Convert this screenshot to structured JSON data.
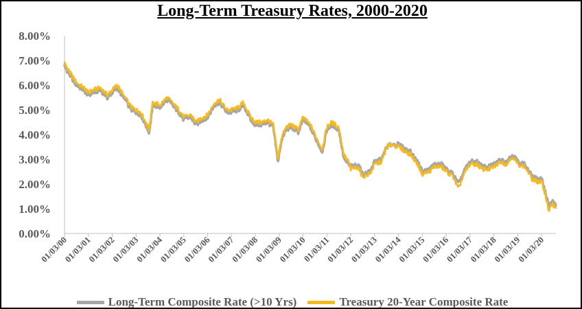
{
  "chart_data": {
    "type": "line",
    "title": "Long-Term Treasury Rates, 2000-2020",
    "xlabel": "",
    "ylabel": "",
    "y_tick_labels": [
      "0.00%",
      "1.00%",
      "2.00%",
      "3.00%",
      "4.00%",
      "5.00%",
      "6.00%",
      "7.00%",
      "8.00%"
    ],
    "ylim": [
      0,
      8
    ],
    "x_tick_labels": [
      "01/03/00",
      "01/03/01",
      "01/03/02",
      "01/03/03",
      "01/03/04",
      "01/03/05",
      "01/03/06",
      "01/03/07",
      "01/03/08",
      "01/03/09",
      "01/03/10",
      "01/03/11",
      "01/03/12",
      "01/03/13",
      "01/03/14",
      "01/03/15",
      "01/03/16",
      "01/03/17",
      "01/03/18",
      "01/03/19",
      "01/03/20"
    ],
    "xlim": [
      2000.0,
      2020.6
    ],
    "grid": false,
    "legend_position": "bottom",
    "series": [
      {
        "name": "Long-Term Composite  Rate (>10 Yrs)",
        "color": "#a6a6a6",
        "x": [
          2000.0,
          2000.1,
          2000.3,
          2000.5,
          2000.8,
          2001.0,
          2001.2,
          2001.5,
          2001.8,
          2002.0,
          2002.2,
          2002.4,
          2002.8,
          2003.0,
          2003.2,
          2003.45,
          2003.55,
          2003.7,
          2004.0,
          2004.3,
          2004.6,
          2004.8,
          2005.0,
          2005.3,
          2005.5,
          2005.8,
          2006.0,
          2006.3,
          2006.5,
          2006.8,
          2007.0,
          2007.3,
          2007.5,
          2007.8,
          2008.0,
          2008.3,
          2008.5,
          2008.75,
          2008.95,
          2009.1,
          2009.3,
          2009.5,
          2009.8,
          2010.0,
          2010.3,
          2010.5,
          2010.8,
          2011.0,
          2011.2,
          2011.5,
          2011.7,
          2011.9,
          2012.0,
          2012.3,
          2012.5,
          2012.8,
          2013.0,
          2013.3,
          2013.5,
          2013.7,
          2014.0,
          2014.3,
          2014.5,
          2014.8,
          2015.0,
          2015.3,
          2015.5,
          2015.8,
          2016.0,
          2016.3,
          2016.5,
          2016.8,
          2017.0,
          2017.3,
          2017.5,
          2017.8,
          2018.0,
          2018.3,
          2018.5,
          2018.8,
          2019.0,
          2019.3,
          2019.6,
          2019.8,
          2020.0,
          2020.15,
          2020.3,
          2020.45,
          2020.6
        ],
        "values": [
          6.8,
          6.6,
          6.3,
          6.0,
          5.8,
          5.6,
          5.7,
          5.8,
          5.5,
          5.7,
          5.9,
          5.6,
          5.0,
          4.9,
          4.8,
          4.3,
          4.1,
          5.2,
          5.1,
          5.4,
          5.1,
          4.9,
          4.6,
          4.7,
          4.4,
          4.6,
          4.7,
          5.2,
          5.3,
          4.9,
          4.9,
          5.0,
          5.2,
          4.6,
          4.4,
          4.4,
          4.5,
          4.3,
          2.9,
          3.8,
          4.2,
          4.3,
          4.1,
          4.6,
          4.3,
          3.9,
          3.3,
          4.2,
          4.4,
          4.2,
          3.1,
          2.8,
          2.7,
          2.8,
          2.4,
          2.5,
          2.9,
          3.0,
          3.5,
          3.6,
          3.6,
          3.4,
          3.3,
          2.9,
          2.5,
          2.6,
          2.8,
          2.8,
          2.6,
          2.4,
          2.0,
          2.6,
          2.9,
          2.9,
          2.7,
          2.7,
          2.8,
          3.0,
          2.9,
          3.2,
          2.9,
          2.8,
          2.3,
          2.2,
          2.2,
          1.7,
          1.1,
          1.3,
          1.1
        ]
      },
      {
        "name": "Treasury 20-Year Composite Rate",
        "color": "#f5b921",
        "x": [
          2000.0,
          2000.1,
          2000.3,
          2000.5,
          2000.8,
          2001.0,
          2001.2,
          2001.5,
          2001.8,
          2002.0,
          2002.2,
          2002.4,
          2002.8,
          2003.0,
          2003.2,
          2003.45,
          2003.55,
          2003.7,
          2004.0,
          2004.3,
          2004.6,
          2004.8,
          2005.0,
          2005.3,
          2005.5,
          2005.8,
          2006.0,
          2006.3,
          2006.5,
          2006.8,
          2007.0,
          2007.3,
          2007.5,
          2007.8,
          2008.0,
          2008.3,
          2008.5,
          2008.75,
          2008.95,
          2009.1,
          2009.3,
          2009.5,
          2009.8,
          2010.0,
          2010.3,
          2010.5,
          2010.8,
          2011.0,
          2011.2,
          2011.5,
          2011.7,
          2011.9,
          2012.0,
          2012.3,
          2012.5,
          2012.8,
          2013.0,
          2013.3,
          2013.5,
          2013.7,
          2014.0,
          2014.3,
          2014.5,
          2014.8,
          2015.0,
          2015.3,
          2015.5,
          2015.8,
          2016.0,
          2016.3,
          2016.5,
          2016.8,
          2017.0,
          2017.3,
          2017.5,
          2017.8,
          2018.0,
          2018.3,
          2018.5,
          2018.8,
          2019.0,
          2019.3,
          2019.6,
          2019.8,
          2020.0,
          2020.15,
          2020.3,
          2020.45,
          2020.6
        ],
        "values": [
          6.9,
          6.7,
          6.4,
          6.1,
          5.9,
          5.7,
          5.8,
          5.9,
          5.6,
          5.8,
          6.0,
          5.7,
          5.1,
          5.0,
          4.9,
          4.4,
          4.2,
          5.3,
          5.2,
          5.5,
          5.2,
          5.0,
          4.7,
          4.8,
          4.5,
          4.7,
          4.8,
          5.3,
          5.4,
          5.0,
          5.0,
          5.1,
          5.3,
          4.7,
          4.5,
          4.5,
          4.6,
          4.4,
          3.0,
          3.9,
          4.3,
          4.4,
          4.2,
          4.7,
          4.4,
          4.0,
          3.4,
          4.3,
          4.5,
          4.3,
          3.2,
          2.9,
          2.6,
          2.7,
          2.3,
          2.4,
          2.8,
          2.9,
          3.5,
          3.6,
          3.5,
          3.3,
          3.2,
          2.8,
          2.4,
          2.5,
          2.7,
          2.7,
          2.5,
          2.3,
          1.8,
          2.5,
          2.8,
          2.8,
          2.6,
          2.6,
          2.7,
          2.9,
          2.8,
          3.1,
          2.8,
          2.7,
          2.2,
          2.1,
          2.1,
          1.6,
          0.9,
          1.2,
          1.0
        ]
      }
    ]
  }
}
